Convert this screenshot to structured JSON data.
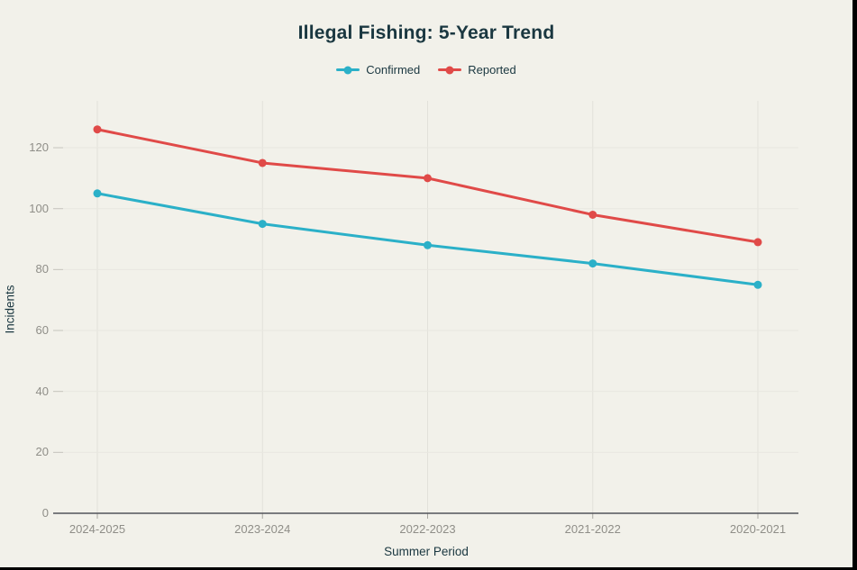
{
  "page": {
    "background": "#f2f1ea",
    "frame_color": "#000000"
  },
  "chart_data": {
    "type": "line",
    "title": "Illegal Fishing: 5-Year Trend",
    "xlabel": "Summer Period",
    "ylabel": "Incidents",
    "categories": [
      "2024-2025",
      "2023-2024",
      "2022-2023",
      "2021-2022",
      "2020-2021"
    ],
    "series": [
      {
        "name": "Confirmed",
        "color": "#2bb0c8",
        "values": [
          105,
          95,
          88,
          82,
          75
        ]
      },
      {
        "name": "Reported",
        "color": "#e04a48",
        "values": [
          126,
          115,
          110,
          98,
          89
        ]
      }
    ],
    "yticks": [
      0,
      20,
      40,
      60,
      80,
      100,
      120
    ],
    "ylim": [
      0,
      135
    ],
    "grid": true,
    "legend_position": "top",
    "text_color": "#1a3740",
    "tick_label_color": "#8f8e88"
  }
}
